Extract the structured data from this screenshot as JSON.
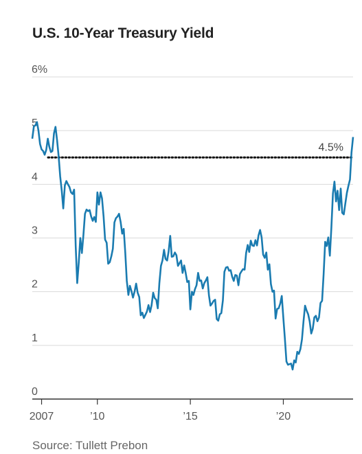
{
  "chart_data": {
    "type": "line",
    "title": "U.S. 10-Year Treasury Yield",
    "source": "Source: Tullett Prebon",
    "xlabel": "",
    "ylabel": "",
    "ylim": [
      0,
      6
    ],
    "xlim": [
      "2006-07",
      "2023-10"
    ],
    "y_tick_labels": [
      "0",
      "1",
      "2",
      "3",
      "4",
      "5",
      "6%"
    ],
    "y_ticks": [
      0,
      1,
      2,
      3,
      4,
      5,
      6
    ],
    "x_tick_labels": [
      "2007",
      "’10",
      "’15",
      "’20"
    ],
    "x_ticks": [
      2007,
      2010,
      2015,
      2020
    ],
    "grid": "horizontal",
    "line_color": "#1a7bb0",
    "reference_line": {
      "value": 4.5,
      "label": "4.5%",
      "style": "dotted"
    },
    "series": [
      {
        "x": [
          "2006-07",
          "2006-08",
          "2006-09",
          "2006-10",
          "2006-11",
          "2006-12",
          "2007-01",
          "2007-02",
          "2007-03",
          "2007-04",
          "2007-05",
          "2007-06",
          "2007-07",
          "2007-08",
          "2007-09",
          "2007-10",
          "2007-11",
          "2007-12",
          "2008-01",
          "2008-02",
          "2008-03",
          "2008-04",
          "2008-05",
          "2008-06",
          "2008-07",
          "2008-08",
          "2008-09",
          "2008-10",
          "2008-11",
          "2008-12",
          "2009-01",
          "2009-02",
          "2009-03",
          "2009-04",
          "2009-05",
          "2009-06",
          "2009-07",
          "2009-08",
          "2009-09",
          "2009-10",
          "2009-11",
          "2009-12",
          "2010-01",
          "2010-02",
          "2010-03",
          "2010-04",
          "2010-05",
          "2010-06",
          "2010-07",
          "2010-08",
          "2010-09",
          "2010-10",
          "2010-11",
          "2010-12",
          "2011-01",
          "2011-02",
          "2011-03",
          "2011-04",
          "2011-05",
          "2011-06",
          "2011-07",
          "2011-08",
          "2011-09",
          "2011-10",
          "2011-11",
          "2011-12",
          "2012-01",
          "2012-02",
          "2012-03",
          "2012-04",
          "2012-05",
          "2012-06",
          "2012-07",
          "2012-08",
          "2012-09",
          "2012-10",
          "2012-11",
          "2012-12",
          "2013-01",
          "2013-02",
          "2013-03",
          "2013-04",
          "2013-05",
          "2013-06",
          "2013-07",
          "2013-08",
          "2013-09",
          "2013-10",
          "2013-11",
          "2013-12",
          "2014-01",
          "2014-02",
          "2014-03",
          "2014-04",
          "2014-05",
          "2014-06",
          "2014-07",
          "2014-08",
          "2014-09",
          "2014-10",
          "2014-11",
          "2014-12",
          "2015-01",
          "2015-02",
          "2015-03",
          "2015-04",
          "2015-05",
          "2015-06",
          "2015-07",
          "2015-08",
          "2015-09",
          "2015-10",
          "2015-11",
          "2015-12",
          "2016-01",
          "2016-02",
          "2016-03",
          "2016-04",
          "2016-05",
          "2016-06",
          "2016-07",
          "2016-08",
          "2016-09",
          "2016-10",
          "2016-11",
          "2016-12",
          "2017-01",
          "2017-02",
          "2017-03",
          "2017-04",
          "2017-05",
          "2017-06",
          "2017-07",
          "2017-08",
          "2017-09",
          "2017-10",
          "2017-11",
          "2017-12",
          "2018-01",
          "2018-02",
          "2018-03",
          "2018-04",
          "2018-05",
          "2018-06",
          "2018-07",
          "2018-08",
          "2018-09",
          "2018-10",
          "2018-11",
          "2018-12",
          "2019-01",
          "2019-02",
          "2019-03",
          "2019-04",
          "2019-05",
          "2019-06",
          "2019-07",
          "2019-08",
          "2019-09",
          "2019-10",
          "2019-11",
          "2019-12",
          "2020-01",
          "2020-02",
          "2020-03",
          "2020-04",
          "2020-05",
          "2020-06",
          "2020-07",
          "2020-08",
          "2020-09",
          "2020-10",
          "2020-11",
          "2020-12",
          "2021-01",
          "2021-02",
          "2021-03",
          "2021-04",
          "2021-05",
          "2021-06",
          "2021-07",
          "2021-08",
          "2021-09",
          "2021-10",
          "2021-11",
          "2021-12",
          "2022-01",
          "2022-02",
          "2022-03",
          "2022-04",
          "2022-05",
          "2022-06",
          "2022-07",
          "2022-08",
          "2022-09",
          "2022-10",
          "2022-11",
          "2022-12",
          "2023-01",
          "2023-02",
          "2023-03",
          "2023-04",
          "2023-05",
          "2023-06",
          "2023-07",
          "2023-08",
          "2023-09",
          "2023-10"
        ],
        "values": [
          4.85,
          5.08,
          5.1,
          5.16,
          5.0,
          4.75,
          4.65,
          4.62,
          4.55,
          4.64,
          4.85,
          4.7,
          4.6,
          4.62,
          4.95,
          5.07,
          4.82,
          4.52,
          4.15,
          3.88,
          3.55,
          3.98,
          4.06,
          4.0,
          3.95,
          3.85,
          3.82,
          3.9,
          2.85,
          2.16,
          2.55,
          3.0,
          2.72,
          3.05,
          3.45,
          3.53,
          3.5,
          3.52,
          3.4,
          3.32,
          3.39,
          3.3,
          3.85,
          3.62,
          3.85,
          3.74,
          3.4,
          2.97,
          2.91,
          2.52,
          2.55,
          2.66,
          2.8,
          3.29,
          3.37,
          3.4,
          3.45,
          3.3,
          3.08,
          3.17,
          2.72,
          2.2,
          1.94,
          2.11,
          2.01,
          1.89,
          2.0,
          2.15,
          1.98,
          1.9,
          1.56,
          1.61,
          1.51,
          1.57,
          1.63,
          1.75,
          1.62,
          1.75,
          1.98,
          1.88,
          1.85,
          1.69,
          2.16,
          2.48,
          2.58,
          2.78,
          2.61,
          2.58,
          2.75,
          3.04,
          2.65,
          2.66,
          2.73,
          2.68,
          2.48,
          2.53,
          2.58,
          2.35,
          2.49,
          2.35,
          2.18,
          2.2,
          1.67,
          2.0,
          1.94,
          2.05,
          2.12,
          2.35,
          2.2,
          2.21,
          2.06,
          2.16,
          2.21,
          2.27,
          1.93,
          1.74,
          1.78,
          1.83,
          1.85,
          1.49,
          1.46,
          1.58,
          1.6,
          1.84,
          2.37,
          2.45,
          2.46,
          2.39,
          2.4,
          2.28,
          2.2,
          2.31,
          2.3,
          2.12,
          2.33,
          2.38,
          2.42,
          2.41,
          2.72,
          2.87,
          2.74,
          2.95,
          2.86,
          2.85,
          2.96,
          2.86,
          3.05,
          3.15,
          3.01,
          2.69,
          2.63,
          2.73,
          2.41,
          2.51,
          2.14,
          2.0,
          2.02,
          1.5,
          1.68,
          1.69,
          1.78,
          1.92,
          1.51,
          1.13,
          0.7,
          0.64,
          0.65,
          0.66,
          0.55,
          0.72,
          0.68,
          0.88,
          0.84,
          0.93,
          1.11,
          1.44,
          1.74,
          1.65,
          1.58,
          1.45,
          1.22,
          1.31,
          1.52,
          1.55,
          1.45,
          1.52,
          1.79,
          1.83,
          2.32,
          2.93,
          2.85,
          3.01,
          2.67,
          3.19,
          3.83,
          4.05,
          3.68,
          3.88,
          3.52,
          3.92,
          3.47,
          3.44,
          3.64,
          3.84,
          3.97,
          4.09,
          4.59,
          4.88
        ]
      }
    ]
  }
}
